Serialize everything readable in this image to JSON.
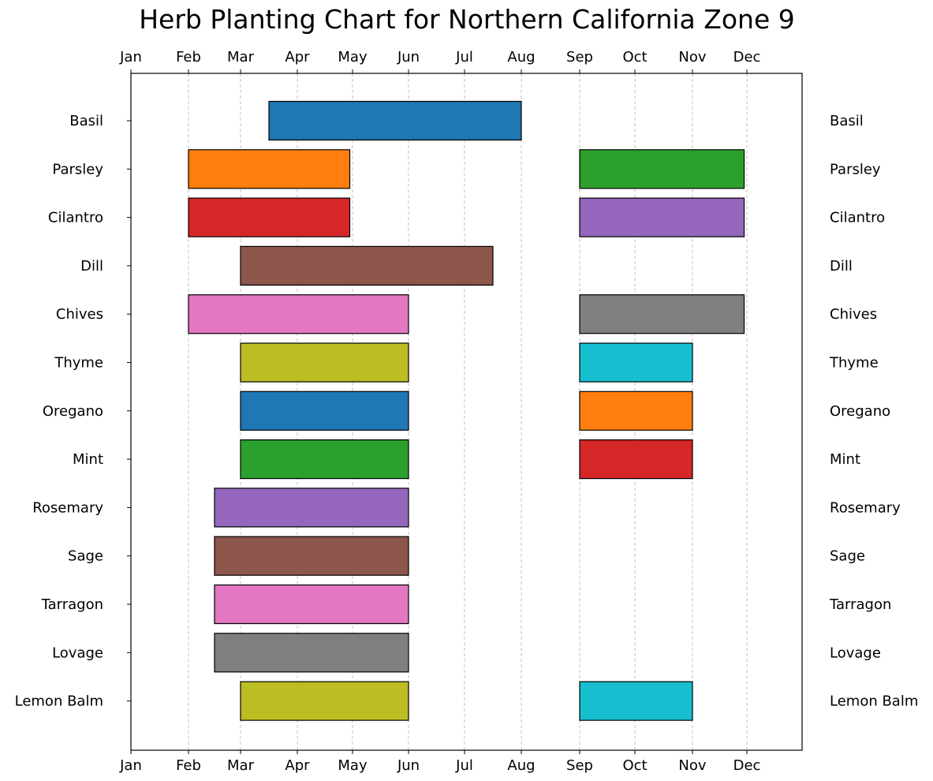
{
  "chart_data": {
    "type": "bar",
    "orientation": "horizontal-gantt",
    "title": "Herb Planting Chart for Northern California Zone 9",
    "month_ticks": [
      "Jan",
      "Feb",
      "Mar",
      "Apr",
      "May",
      "Jun",
      "Jul",
      "Aug",
      "Sep",
      "Oct",
      "Nov",
      "Dec"
    ],
    "xlim": [
      1,
      13
    ],
    "grid": "x-dashed",
    "herbs": [
      {
        "name": "Basil",
        "windows": [
          {
            "start": 3.5,
            "end": 8,
            "color": "#1f77b4"
          }
        ]
      },
      {
        "name": "Parsley",
        "windows": [
          {
            "start": 2,
            "end": 4.95,
            "color": "#ff7f0e"
          },
          {
            "start": 9,
            "end": 11.95,
            "color": "#2ca02c"
          }
        ]
      },
      {
        "name": "Cilantro",
        "windows": [
          {
            "start": 2,
            "end": 4.95,
            "color": "#d62728"
          },
          {
            "start": 9,
            "end": 11.95,
            "color": "#9467bd"
          }
        ]
      },
      {
        "name": "Dill",
        "windows": [
          {
            "start": 3,
            "end": 7.5,
            "color": "#8c564b"
          }
        ]
      },
      {
        "name": "Chives",
        "windows": [
          {
            "start": 2,
            "end": 6,
            "color": "#e377c2"
          },
          {
            "start": 9,
            "end": 11.95,
            "color": "#7f7f7f"
          }
        ]
      },
      {
        "name": "Thyme",
        "windows": [
          {
            "start": 3,
            "end": 6,
            "color": "#bcbd22"
          },
          {
            "start": 9,
            "end": 11,
            "color": "#17becf"
          }
        ]
      },
      {
        "name": "Oregano",
        "windows": [
          {
            "start": 3,
            "end": 6,
            "color": "#1f77b4"
          },
          {
            "start": 9,
            "end": 11,
            "color": "#ff7f0e"
          }
        ]
      },
      {
        "name": "Mint",
        "windows": [
          {
            "start": 3,
            "end": 6,
            "color": "#2ca02c"
          },
          {
            "start": 9,
            "end": 11,
            "color": "#d62728"
          }
        ]
      },
      {
        "name": "Rosemary",
        "windows": [
          {
            "start": 2.5,
            "end": 6,
            "color": "#9467bd"
          }
        ]
      },
      {
        "name": "Sage",
        "windows": [
          {
            "start": 2.5,
            "end": 6,
            "color": "#8c564b"
          }
        ]
      },
      {
        "name": "Tarragon",
        "windows": [
          {
            "start": 2.5,
            "end": 6,
            "color": "#e377c2"
          }
        ]
      },
      {
        "name": "Lovage",
        "windows": [
          {
            "start": 2.5,
            "end": 6,
            "color": "#7f7f7f"
          }
        ]
      },
      {
        "name": "Lemon Balm",
        "windows": [
          {
            "start": 3,
            "end": 6,
            "color": "#bcbd22"
          },
          {
            "start": 9,
            "end": 11,
            "color": "#17becf"
          }
        ]
      }
    ]
  }
}
